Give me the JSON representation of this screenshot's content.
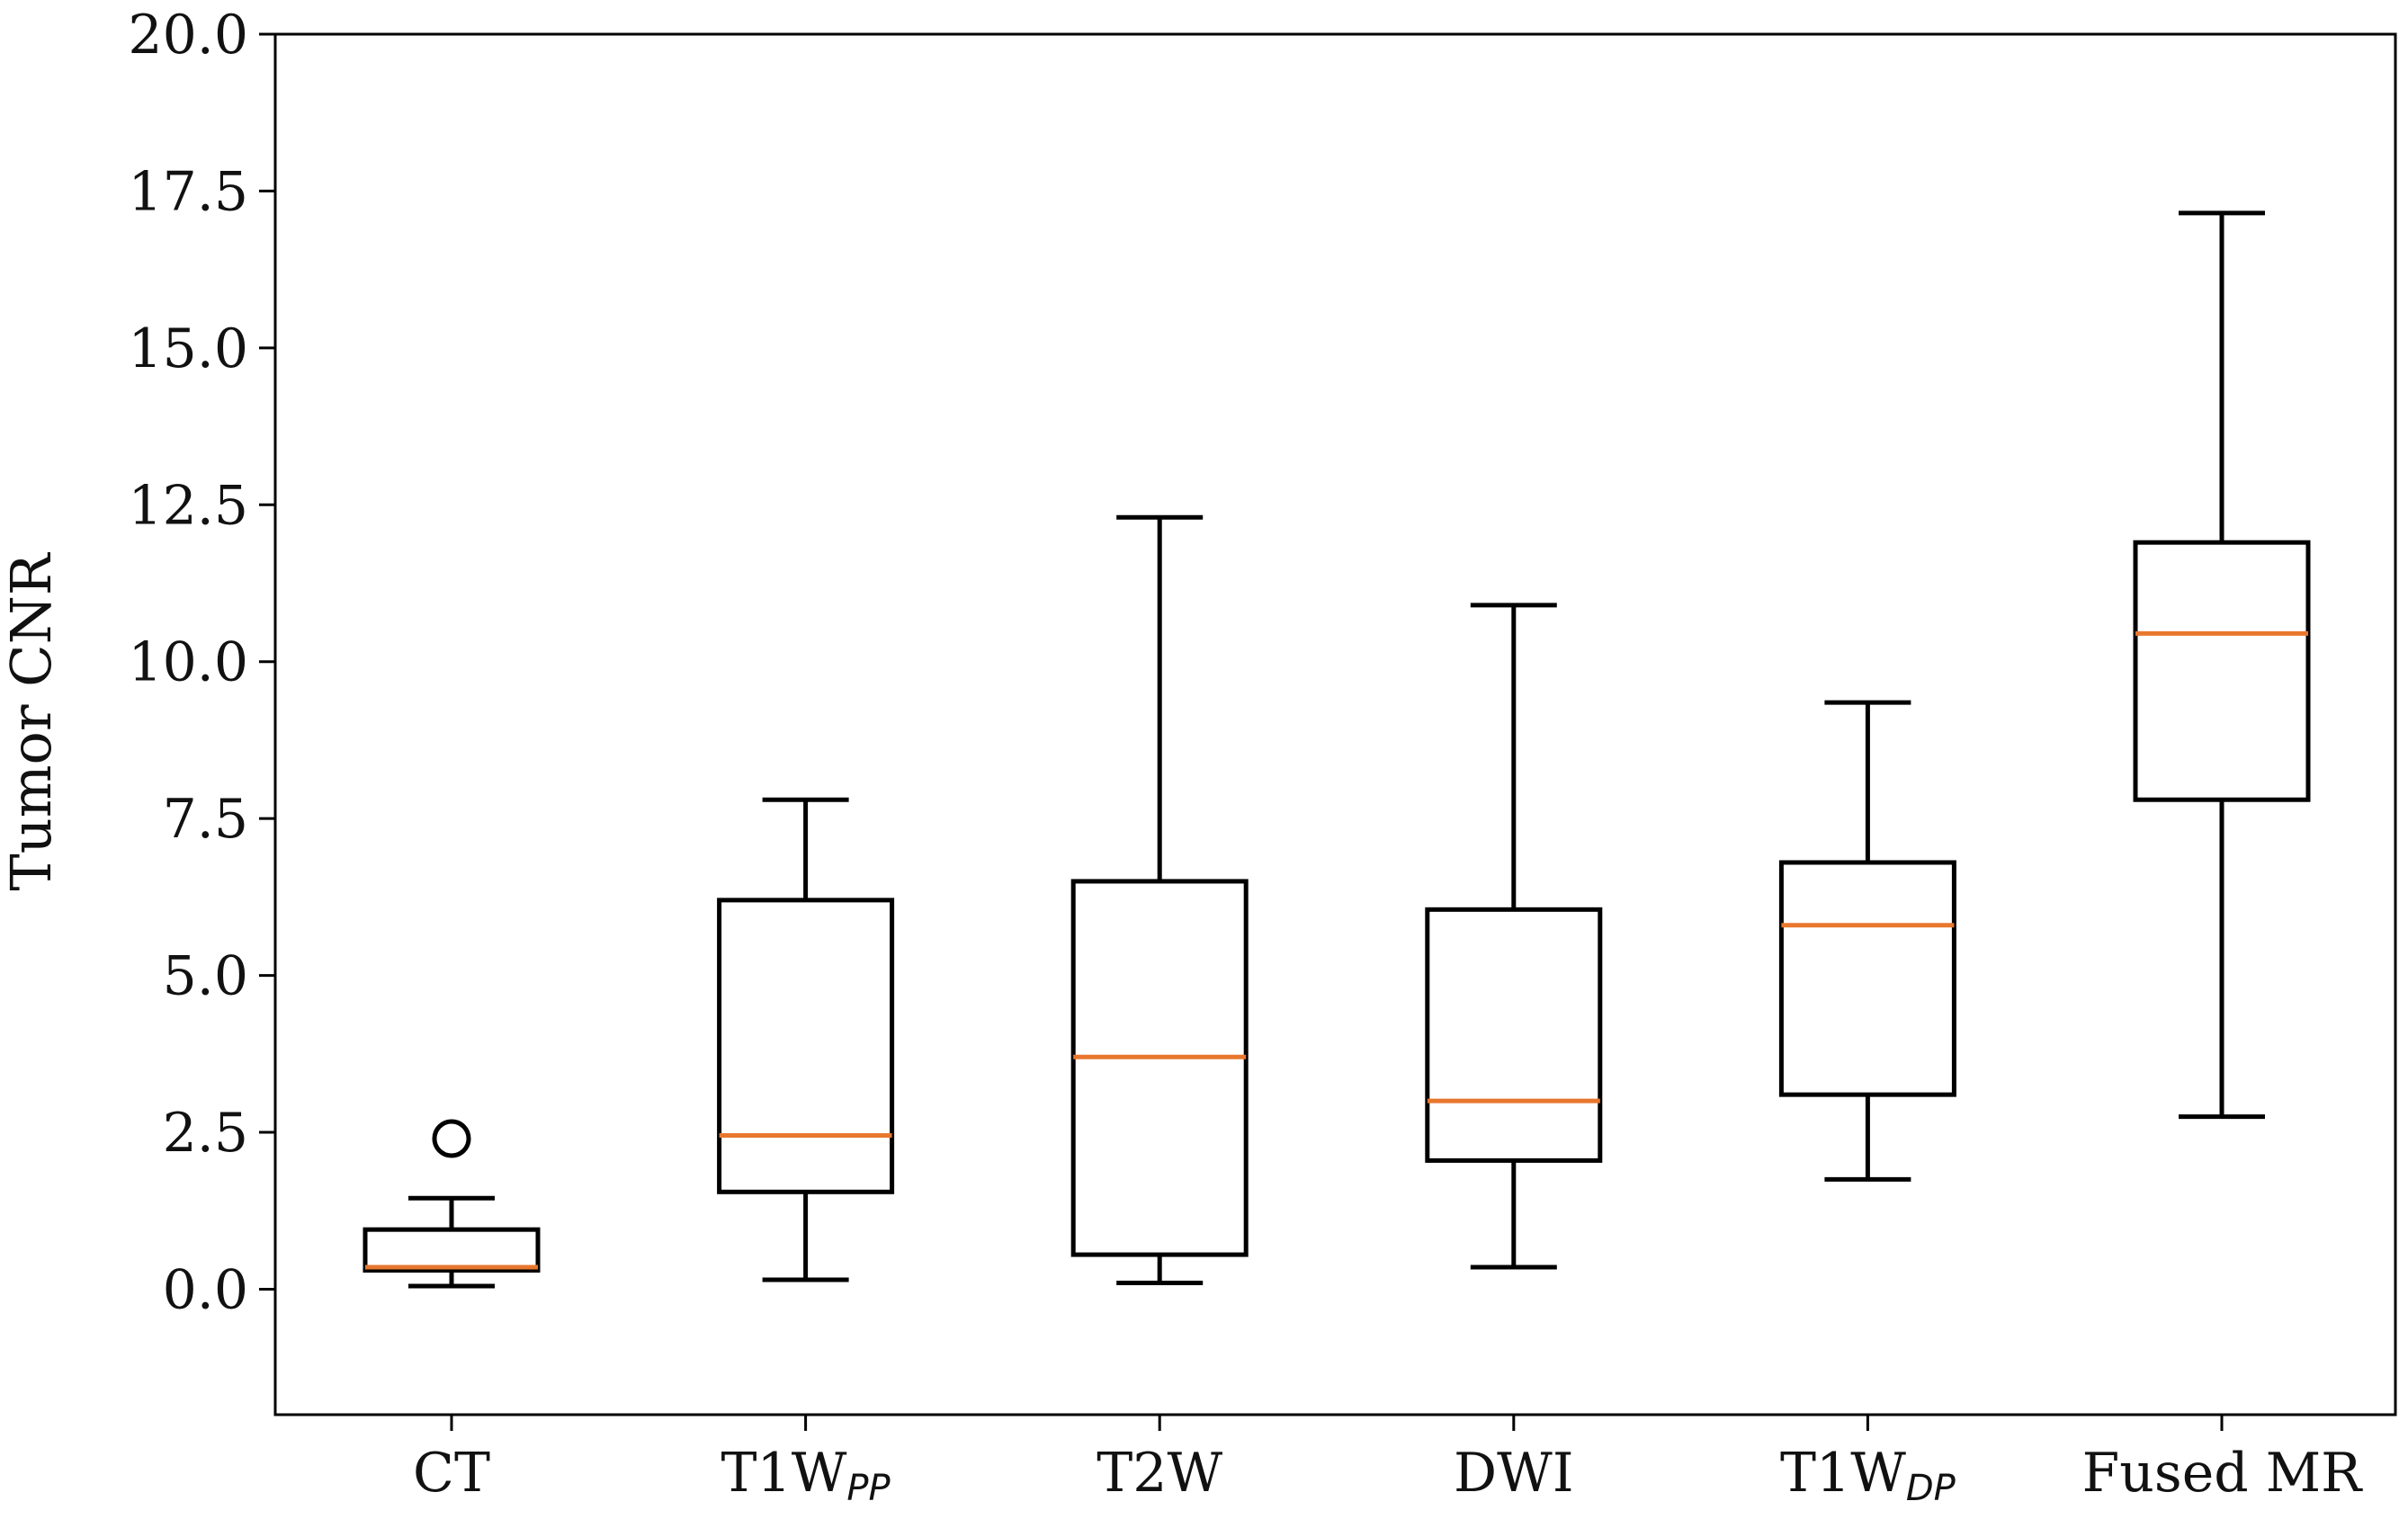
{
  "chart_data": {
    "type": "boxplot",
    "title": "",
    "xlabel": "",
    "ylabel": "Tumor CNR",
    "ylim": [
      -2.0,
      20.0
    ],
    "yticks": [
      "0.0",
      "2.5",
      "5.0",
      "7.5",
      "10.0",
      "12.5",
      "15.0",
      "17.5",
      "20.0"
    ],
    "ytick_values": [
      0.0,
      2.5,
      5.0,
      7.5,
      10.0,
      12.5,
      15.0,
      17.5,
      20.0
    ],
    "colors": {
      "box": "#000000",
      "median": "#e8772e"
    },
    "categories": [
      {
        "name": "CT",
        "base": "CT",
        "sub": ""
      },
      {
        "name": "T1W_PP",
        "base": "T1W",
        "sub": "PP"
      },
      {
        "name": "T2W",
        "base": "T2W",
        "sub": ""
      },
      {
        "name": "DWI",
        "base": "DWI",
        "sub": ""
      },
      {
        "name": "T1W_DP",
        "base": "T1W",
        "sub": "DP"
      },
      {
        "name": "Fused MR",
        "base": "Fused MR",
        "sub": ""
      }
    ],
    "boxes": [
      {
        "whisker_low": 0.05,
        "q1": 0.3,
        "median": 0.35,
        "q3": 0.95,
        "whisker_high": 1.45,
        "outliers": [
          2.4
        ]
      },
      {
        "whisker_low": 0.15,
        "q1": 1.55,
        "median": 2.45,
        "q3": 6.2,
        "whisker_high": 7.8,
        "outliers": []
      },
      {
        "whisker_low": 0.1,
        "q1": 0.55,
        "median": 3.7,
        "q3": 6.5,
        "whisker_high": 12.3,
        "outliers": []
      },
      {
        "whisker_low": 0.35,
        "q1": 2.05,
        "median": 3.0,
        "q3": 6.05,
        "whisker_high": 10.9,
        "outliers": []
      },
      {
        "whisker_low": 1.75,
        "q1": 3.1,
        "median": 5.8,
        "q3": 6.8,
        "whisker_high": 9.35,
        "outliers": []
      },
      {
        "whisker_low": 2.75,
        "q1": 7.8,
        "median": 10.45,
        "q3": 11.9,
        "whisker_high": 17.15,
        "outliers": []
      }
    ]
  }
}
